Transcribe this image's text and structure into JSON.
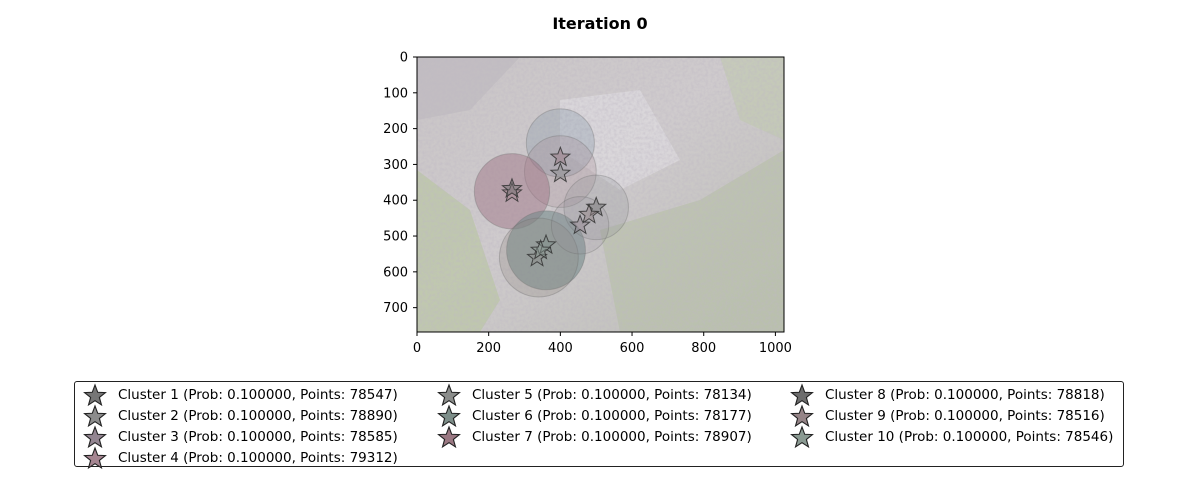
{
  "chart_data": {
    "type": "scatter",
    "title": "Iteration 0",
    "xlabel": "",
    "ylabel": "",
    "xlim": [
      0,
      1024
    ],
    "ylim": [
      768,
      0
    ],
    "xticks": [
      0,
      200,
      400,
      600,
      800,
      1000
    ],
    "yticks": [
      0,
      100,
      200,
      300,
      400,
      500,
      600,
      700
    ],
    "background": "photo of green and purple foliage, washed out",
    "circles": [
      {
        "cx": 400,
        "cy": 240,
        "r": 95,
        "color": "#7b8ea3",
        "opacity": 0.28
      },
      {
        "cx": 400,
        "cy": 320,
        "r": 100,
        "color": "#a08087",
        "opacity": 0.22
      },
      {
        "cx": 265,
        "cy": 375,
        "r": 105,
        "color": "#9b6f80",
        "opacity": 0.45
      },
      {
        "cx": 360,
        "cy": 540,
        "r": 110,
        "color": "#6f8686",
        "opacity": 0.55
      },
      {
        "cx": 340,
        "cy": 560,
        "r": 110,
        "color": "#8a857c",
        "opacity": 0.25
      },
      {
        "cx": 500,
        "cy": 420,
        "r": 90,
        "color": "#8a8f92",
        "opacity": 0.22
      },
      {
        "cx": 455,
        "cy": 470,
        "r": 80,
        "color": "#8f8b95",
        "opacity": 0.18
      }
    ],
    "series": [
      {
        "name": "Cluster 1 (Prob: 0.100000, Points: 78547)",
        "color": "#767676",
        "x": [
          500
        ],
        "y": [
          420
        ]
      },
      {
        "name": "Cluster 2 (Prob: 0.100000, Points: 78890)",
        "color": "#8c8c8c",
        "x": [
          400
        ],
        "y": [
          325
        ]
      },
      {
        "name": "Cluster 3 (Prob: 0.100000, Points: 78585)",
        "color": "#938591",
        "x": [
          455
        ],
        "y": [
          470
        ]
      },
      {
        "name": "Cluster 4 (Prob: 0.100000, Points: 79312)",
        "color": "#a58591",
        "x": [
          265
        ],
        "y": [
          380
        ]
      },
      {
        "name": "Cluster 5 (Prob: 0.100000, Points: 78134)",
        "color": "#8b8d8b",
        "x": [
          335
        ],
        "y": [
          560
        ]
      },
      {
        "name": "Cluster 6 (Prob: 0.100000, Points: 78177)",
        "color": "#7d8e89",
        "x": [
          360
        ],
        "y": [
          525
        ]
      },
      {
        "name": "Cluster 7 (Prob: 0.100000, Points: 78907)",
        "color": "#9a7882",
        "x": [
          400
        ],
        "y": [
          280
        ]
      },
      {
        "name": "Cluster 8 (Prob: 0.100000, Points: 78818)",
        "color": "#6d6d6d",
        "x": [
          265
        ],
        "y": [
          368
        ]
      },
      {
        "name": "Cluster 9 (Prob: 0.100000, Points: 78516)",
        "color": "#958487",
        "x": [
          480
        ],
        "y": [
          440
        ]
      },
      {
        "name": "Cluster 10 (Prob: 0.100000, Points: 78546)",
        "color": "#8a9a92",
        "x": [
          345
        ],
        "y": [
          540
        ]
      }
    ],
    "legend_position": "bottom-center",
    "legend_columns": 3
  }
}
